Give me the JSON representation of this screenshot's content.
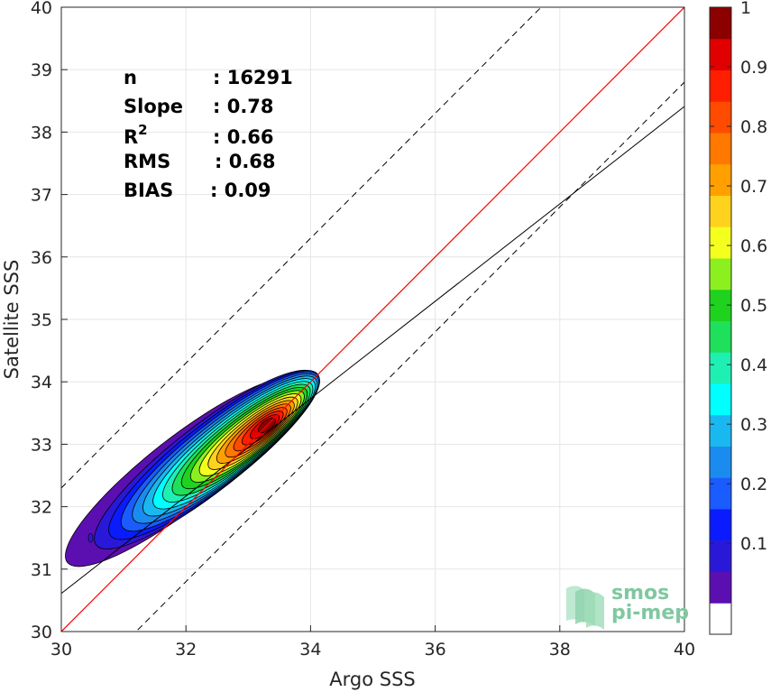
{
  "chart_data": {
    "type": "contour",
    "xlabel": "Argo SSS",
    "ylabel": "Satellite SSS",
    "xlim": [
      30,
      40
    ],
    "ylim": [
      30,
      40
    ],
    "xticks": [
      "30",
      "32",
      "34",
      "36",
      "38",
      "40"
    ],
    "yticks": [
      "30",
      "31",
      "32",
      "33",
      "34",
      "35",
      "36",
      "37",
      "38",
      "39",
      "40"
    ],
    "grid": true,
    "stats": [
      {
        "label": "n",
        "value": ": 16291"
      },
      {
        "label": "Slope",
        "value": ": 0.78"
      },
      {
        "label": "R",
        "sup": "2",
        "value": ": 0.66"
      },
      {
        "label": "RMS",
        "value": ": 0.68"
      },
      {
        "label": "BIAS",
        "value": ": 0.09"
      }
    ],
    "lines": {
      "identity": {
        "slope": 1,
        "intercept": 0,
        "color": "#ff0000"
      },
      "regression": {
        "slope": 0.78,
        "intercept": 7.21,
        "color": "#000000"
      },
      "bounds": [
        {
          "slope": 1,
          "intercept": 2.3,
          "style": "dashed"
        },
        {
          "slope": 1,
          "intercept": -1.2,
          "style": "dashed"
        }
      ]
    },
    "density_peak": {
      "x": 33.3,
      "y": 33.3
    },
    "colorbar": {
      "min": 0,
      "max": 1,
      "ticks": [
        "0.1",
        "0.2",
        "0.3",
        "0.4",
        "0.5",
        "0.6",
        "0.7",
        "0.8",
        "0.9",
        "1"
      ],
      "levels": [
        "#ffffff",
        "#5b0fb1",
        "#2a18d8",
        "#0a1cff",
        "#1a5cff",
        "#1a8cf0",
        "#1ab8f0",
        "#00ffff",
        "#1ef0b4",
        "#1ee05a",
        "#1ed21e",
        "#8cf01e",
        "#f5ff1e",
        "#ffd21e",
        "#ffa000",
        "#ff7800",
        "#ff4b00",
        "#ff1e00",
        "#e10000",
        "#8c0000"
      ]
    },
    "logo": {
      "line1": "smos",
      "line2": "pi-mep"
    }
  }
}
